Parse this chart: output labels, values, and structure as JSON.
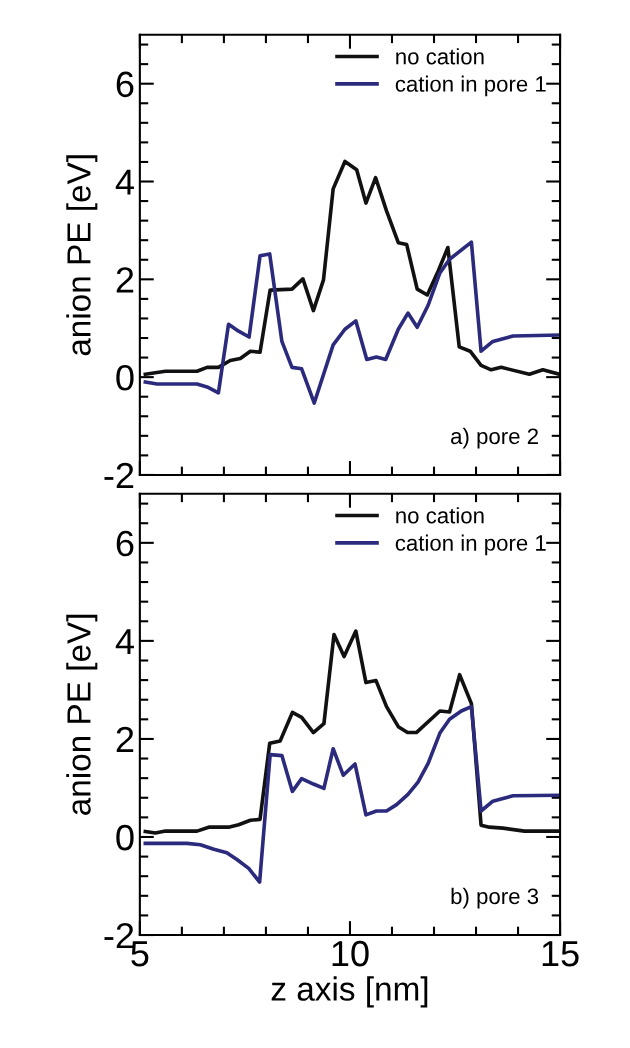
{
  "chart_data": [
    {
      "type": "line",
      "ylabel": "anion PE [eV]",
      "xlim": [
        5,
        15
      ],
      "xticks": [
        5,
        10,
        15
      ],
      "ylim": [
        -2,
        7
      ],
      "yticks": [
        -2,
        0,
        2,
        4,
        6
      ],
      "tick_labels": "y",
      "legend": "top right",
      "grid": false,
      "marker": "none",
      "line_style": "solid",
      "annotations": [
        "a) pore 2"
      ],
      "series": [
        {
          "name": "no cation",
          "color": "#111111",
          "x": [
            5.13,
            5.61,
            6.36,
            6.6,
            6.87,
            7.15,
            7.39,
            7.63,
            7.86,
            8.1,
            8.62,
            8.88,
            9.13,
            9.37,
            9.6,
            9.88,
            10.16,
            10.38,
            10.61,
            10.87,
            11.15,
            11.35,
            11.6,
            11.84,
            12.1,
            12.33,
            12.6,
            12.86,
            13.12,
            13.36,
            13.6,
            14.27,
            14.59,
            14.98
          ],
          "values": [
            0.06,
            0.12,
            0.12,
            0.2,
            0.2,
            0.34,
            0.38,
            0.53,
            0.51,
            1.78,
            1.8,
            2.01,
            1.36,
            1.99,
            3.85,
            4.41,
            4.24,
            3.56,
            4.08,
            3.4,
            2.75,
            2.71,
            1.8,
            1.68,
            2.17,
            2.65,
            0.62,
            0.53,
            0.24,
            0.15,
            0.2,
            0.06,
            0.15,
            0.06
          ]
        },
        {
          "name": "cation in pore 1",
          "color": "#2b2a7c",
          "x": [
            5.13,
            5.41,
            6.36,
            6.6,
            6.87,
            7.11,
            7.35,
            7.6,
            7.86,
            8.09,
            8.38,
            8.62,
            8.85,
            9.15,
            9.6,
            9.88,
            10.14,
            10.4,
            10.63,
            10.85,
            11.15,
            11.38,
            11.6,
            11.86,
            12.14,
            12.37,
            12.89,
            13.12,
            13.4,
            13.88,
            14.98
          ],
          "values": [
            -0.1,
            -0.14,
            -0.14,
            -0.2,
            -0.32,
            1.08,
            0.94,
            0.82,
            2.48,
            2.52,
            0.73,
            0.2,
            0.17,
            -0.53,
            0.66,
            0.98,
            1.15,
            0.36,
            0.41,
            0.36,
            0.98,
            1.31,
            1.02,
            1.47,
            2.13,
            2.41,
            2.76,
            0.53,
            0.73,
            0.84,
            0.86
          ]
        }
      ]
    },
    {
      "type": "line",
      "xlabel": "z axis [nm]",
      "ylabel": "anion PE [eV]",
      "xlim": [
        5,
        15
      ],
      "xticks": [
        5,
        10,
        15
      ],
      "ylim": [
        -2,
        7
      ],
      "yticks": [
        -2,
        0,
        2,
        4,
        6
      ],
      "legend": "top right",
      "grid": false,
      "marker": "none",
      "line_style": "solid",
      "annotations": [
        "b) pore 3"
      ],
      "series": [
        {
          "name": "no cation",
          "color": "#111111",
          "x": [
            5.13,
            5.37,
            5.61,
            6.36,
            6.64,
            7.11,
            7.35,
            7.63,
            7.86,
            8.09,
            8.34,
            8.63,
            8.85,
            9.13,
            9.38,
            9.62,
            9.86,
            10.14,
            10.38,
            10.62,
            10.87,
            11.15,
            11.37,
            11.58,
            12.14,
            12.37,
            12.61,
            12.89,
            13.12,
            13.32,
            13.64,
            14.15,
            14.98
          ],
          "values": [
            0.11,
            0.08,
            0.12,
            0.12,
            0.2,
            0.2,
            0.25,
            0.34,
            0.36,
            1.91,
            1.96,
            2.54,
            2.44,
            2.13,
            2.31,
            4.13,
            3.68,
            4.2,
            3.15,
            3.19,
            2.66,
            2.25,
            2.13,
            2.13,
            2.57,
            2.55,
            3.31,
            2.72,
            0.24,
            0.2,
            0.18,
            0.12,
            0.12
          ]
        },
        {
          "name": "cation in pore 1",
          "color": "#2b2a7c",
          "x": [
            5.13,
            6.12,
            6.44,
            6.76,
            7.07,
            7.31,
            7.59,
            7.85,
            8.1,
            8.38,
            8.63,
            8.85,
            9.13,
            9.38,
            9.6,
            9.84,
            10.12,
            10.38,
            10.63,
            10.87,
            11.11,
            11.38,
            11.62,
            11.86,
            12.14,
            12.37,
            12.65,
            12.89,
            13.12,
            13.4,
            13.88,
            14.98
          ],
          "values": [
            -0.13,
            -0.13,
            -0.16,
            -0.25,
            -0.32,
            -0.46,
            -0.64,
            -0.92,
            1.68,
            1.66,
            0.93,
            1.19,
            1.08,
            0.99,
            1.8,
            1.26,
            1.49,
            0.45,
            0.53,
            0.53,
            0.66,
            0.87,
            1.12,
            1.5,
            2.12,
            2.4,
            2.57,
            2.66,
            0.53,
            0.73,
            0.84,
            0.85
          ]
        }
      ]
    }
  ]
}
